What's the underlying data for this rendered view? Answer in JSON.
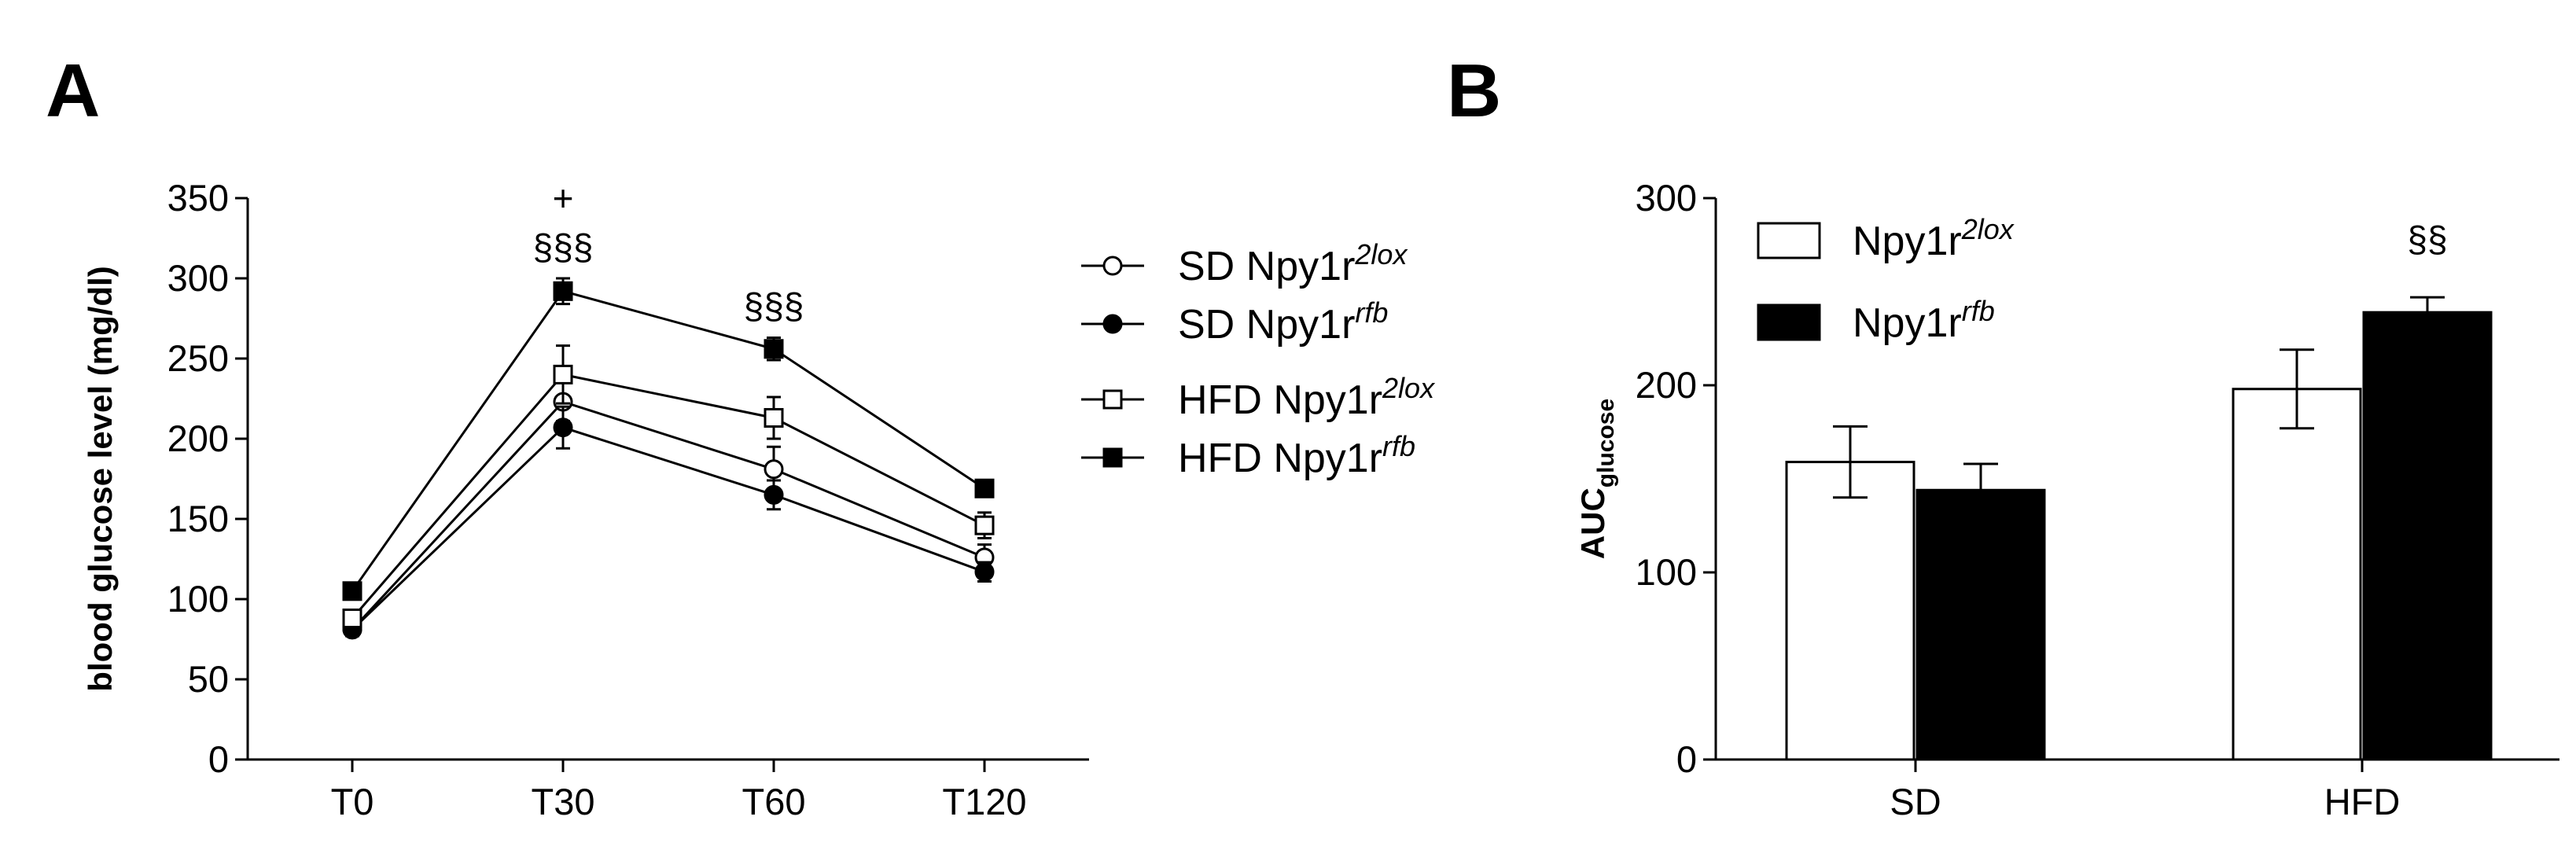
{
  "panels": {
    "a_label": "A",
    "b_label": "B"
  },
  "chart_data": [
    {
      "type": "line",
      "panel": "A",
      "title": "",
      "xlabel": "",
      "ylabel": "blood glucose level (mg/dl)",
      "ylim": [
        0,
        350
      ],
      "yticks": [
        "0",
        "50",
        "100",
        "150",
        "200",
        "250",
        "300",
        "350"
      ],
      "ytick_values": [
        0,
        50,
        100,
        150,
        200,
        250,
        300,
        350
      ],
      "categories": [
        "T0",
        "T30",
        "T60",
        "T120"
      ],
      "series": [
        {
          "base": "SD Npy1r",
          "sup": "2lox",
          "marker": "open-circle",
          "values": [
            81,
            223,
            181,
            126
          ],
          "errors": [
            4,
            12,
            14,
            8
          ]
        },
        {
          "base": "SD Npy1r",
          "sup": "rfb",
          "marker": "filled-circle",
          "values": [
            81,
            207,
            165,
            117
          ],
          "errors": [
            4,
            13,
            9,
            6
          ]
        },
        {
          "base": "HFD Npy1r",
          "sup": "2lox",
          "marker": "open-square",
          "values": [
            88,
            240,
            213,
            146
          ],
          "errors": [
            4,
            18,
            13,
            8
          ]
        },
        {
          "base": "HFD Npy1r",
          "sup": "rfb",
          "marker": "filled-square",
          "values": [
            105,
            292,
            256,
            169
          ],
          "errors": [
            4,
            8,
            7,
            3
          ]
        }
      ],
      "annotations": [
        {
          "category": "T30",
          "lines": [
            "+",
            "§§§"
          ]
        },
        {
          "category": "T60",
          "lines": [
            "§§§"
          ]
        }
      ],
      "legend_placement": "right",
      "grid": false
    },
    {
      "type": "bar",
      "panel": "B",
      "title": "",
      "xlabel": "",
      "ylabel_main": "AUC",
      "ylabel_sub": "glucose",
      "ylim": [
        0,
        300
      ],
      "yticks": [
        "0",
        "100",
        "200",
        "300"
      ],
      "ytick_values": [
        0,
        100,
        200,
        300
      ],
      "categories": [
        "SD",
        "HFD"
      ],
      "series": [
        {
          "base": "Npy1r",
          "sup": "2lox",
          "fill": "#ffffff",
          "values": [
            159,
            198
          ],
          "errors": [
            19,
            21
          ]
        },
        {
          "base": "Npy1r",
          "sup": "rfb",
          "fill": "#000000",
          "values": [
            144,
            239
          ],
          "errors": [
            14,
            8
          ]
        }
      ],
      "annotations": [
        {
          "category": "HFD",
          "text": "§§"
        }
      ],
      "legend_placement": "top-left",
      "grid": false
    }
  ]
}
